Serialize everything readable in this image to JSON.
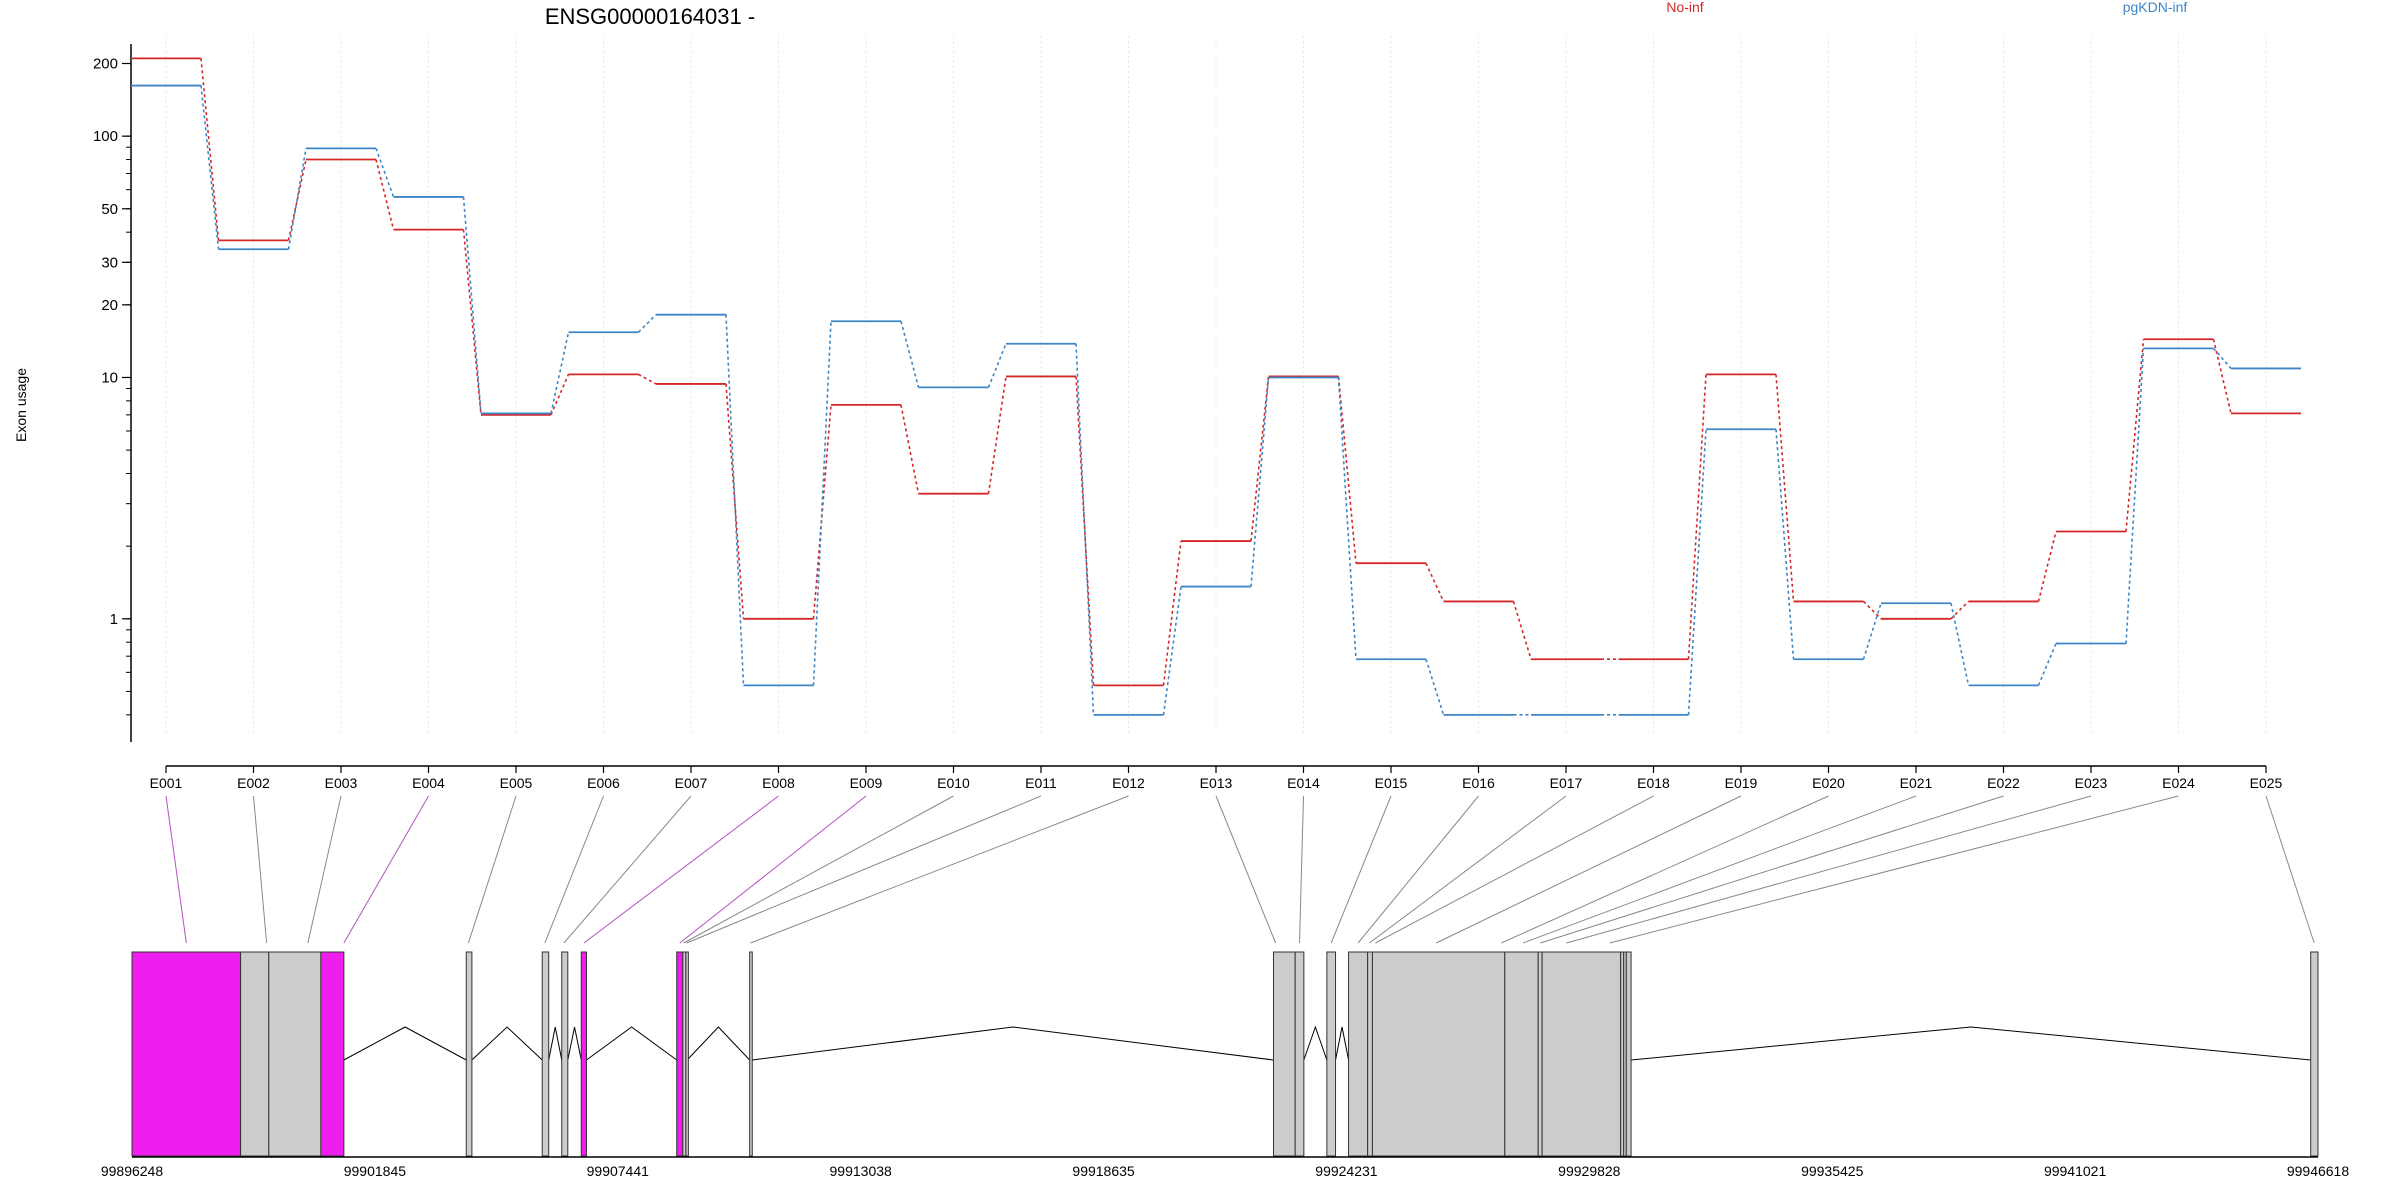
{
  "chart_data": {
    "type": "line",
    "title": "ENSG00000164031 -",
    "ylabel": "Exon usage",
    "y_scale": "log",
    "ylim": [
      0.33,
      260
    ],
    "y_ticks": [
      1,
      10,
      20,
      30,
      50,
      100,
      200
    ],
    "categories": [
      "E001",
      "E002",
      "E003",
      "E004",
      "E005",
      "E006",
      "E007",
      "E008",
      "E009",
      "E010",
      "E011",
      "E012",
      "E013",
      "E014",
      "E015",
      "E016",
      "E017",
      "E018",
      "E019",
      "E020",
      "E021",
      "E022",
      "E023",
      "E024",
      "E025"
    ],
    "series": [
      {
        "name": "No-inf",
        "color": "#d62728",
        "values": [
          210,
          37,
          80,
          41,
          7,
          10.3,
          9.4,
          1.0,
          7.7,
          3.3,
          10.1,
          0.53,
          2.1,
          10.1,
          1.7,
          1.18,
          0.68,
          0.68,
          10.3,
          1.18,
          1.0,
          1.18,
          2.3,
          14.4,
          7.1
        ]
      },
      {
        "name": "pgKDN-inf",
        "color": "#3d85c6",
        "values": [
          162,
          34,
          89,
          56,
          7.1,
          15.4,
          18.2,
          0.53,
          17.1,
          9.1,
          13.8,
          0.4,
          1.36,
          10.0,
          0.68,
          0.4,
          0.4,
          0.4,
          6.1,
          0.68,
          1.16,
          0.53,
          0.79,
          13.2,
          10.9
        ]
      }
    ],
    "legend_placement": "top",
    "grid": "vertical dotted at each exon",
    "gene_model": {
      "coordinates": [
        "99896248",
        "99901845",
        "99907441",
        "99913038",
        "99918635",
        "99924231",
        "99929828",
        "99935425",
        "99941021",
        "99946618"
      ],
      "start": 99896248,
      "end": 99946618,
      "highlight_color": "#ee1eee",
      "exon_color": "#cccccc",
      "exons": [
        {
          "id": "E001",
          "start": 99896248,
          "end": 99898750,
          "highlight": true
        },
        {
          "id": "E002",
          "start": 99898750,
          "end": 99899400,
          "highlight": false
        },
        {
          "id": "E003",
          "start": 99899400,
          "end": 99900600,
          "highlight": false
        },
        {
          "id": "E004",
          "start": 99900600,
          "end": 99901130,
          "highlight": true
        },
        {
          "id": "E005",
          "start": 99903950,
          "end": 99904080,
          "highlight": false
        },
        {
          "id": "E006",
          "start": 99905700,
          "end": 99905850,
          "highlight": false
        },
        {
          "id": "E007",
          "start": 99906150,
          "end": 99906290,
          "highlight": false
        },
        {
          "id": "E008",
          "start": 99906600,
          "end": 99906720,
          "highlight": true
        },
        {
          "id": "E009",
          "start": 99908800,
          "end": 99908940,
          "highlight": true
        },
        {
          "id": "E010",
          "start": 99908940,
          "end": 99909010,
          "highlight": false
        },
        {
          "id": "E011",
          "start": 99909010,
          "end": 99909040,
          "highlight": false
        },
        {
          "id": "E012",
          "start": 99910480,
          "end": 99910540,
          "highlight": false
        },
        {
          "id": "E013",
          "start": 99922550,
          "end": 99923050,
          "highlight": false
        },
        {
          "id": "E014",
          "start": 99923050,
          "end": 99923250,
          "highlight": false
        },
        {
          "id": "E015",
          "start": 99923780,
          "end": 99923980,
          "highlight": false
        },
        {
          "id": "E016",
          "start": 99924280,
          "end": 99924720,
          "highlight": false
        },
        {
          "id": "E017",
          "start": 99924720,
          "end": 99924830,
          "highlight": false
        },
        {
          "id": "E018",
          "start": 99924830,
          "end": 99927880,
          "highlight": false
        },
        {
          "id": "E019",
          "start": 99927880,
          "end": 99928650,
          "highlight": false
        },
        {
          "id": "E020",
          "start": 99928650,
          "end": 99928740,
          "highlight": false
        },
        {
          "id": "E021",
          "start": 99928740,
          "end": 99930550,
          "highlight": false
        },
        {
          "id": "E022",
          "start": 99930550,
          "end": 99930620,
          "highlight": false
        },
        {
          "id": "E023",
          "start": 99930620,
          "end": 99930680,
          "highlight": false
        },
        {
          "id": "E024",
          "start": 99930680,
          "end": 99930790,
          "highlight": false
        },
        {
          "id": "E025",
          "start": 99946450,
          "end": 99946618,
          "highlight": false
        }
      ],
      "connector_targets": [
        99897500,
        99899350,
        99900300,
        99901130,
        99904000,
        99905760,
        99906200,
        99906660,
        99908870,
        99908960,
        99909030,
        99910500,
        99922600,
        99923150,
        99923880,
        99924500,
        99924760,
        99924900,
        99926300,
        99927800,
        99928300,
        99928700,
        99929300,
        99930300,
        99946530
      ]
    }
  }
}
